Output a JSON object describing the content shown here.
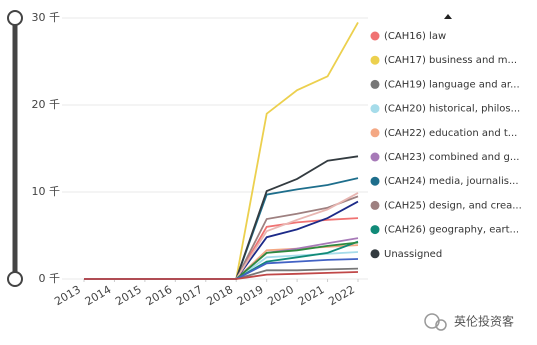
{
  "chart_data": {
    "type": "line",
    "x": [
      2013,
      2014,
      2015,
      2016,
      2017,
      2018,
      2019,
      2020,
      2021,
      2022
    ],
    "xlim": [
      2013,
      2022
    ],
    "xticks": [
      2013,
      2014,
      2015,
      2016,
      2017,
      2018,
      2019,
      2020,
      2021,
      2022
    ],
    "ylim": [
      0,
      30000
    ],
    "yticks": [
      {
        "value": 0,
        "label": "0 千"
      },
      {
        "value": 10000,
        "label": "10 千"
      },
      {
        "value": 20000,
        "label": "20 千"
      },
      {
        "value": 30000,
        "label": "30 千"
      }
    ],
    "grid": true,
    "series": [
      {
        "name": "(CAH16) law",
        "color": "#f07272",
        "values": [
          0,
          0,
          0,
          0,
          0,
          0,
          6000,
          6500,
          6800,
          7000
        ]
      },
      {
        "name": "(CAH17) business and m...",
        "color": "#ecd04e",
        "values": [
          0,
          0,
          0,
          0,
          0,
          0,
          19000,
          21700,
          23300,
          29500
        ]
      },
      {
        "name": "(CAH19) language and ar...",
        "color": "#777777",
        "values": [
          0,
          0,
          0,
          0,
          0,
          0,
          1000,
          1000,
          1100,
          1200
        ]
      },
      {
        "name": "(CAH20) historical, philos...",
        "color": "#a6dcea",
        "values": [
          0,
          0,
          0,
          0,
          0,
          0,
          2500,
          2700,
          2900,
          3100
        ]
      },
      {
        "name": "(CAH22) education and t...",
        "color": "#f4a884",
        "values": [
          0,
          0,
          0,
          0,
          0,
          0,
          3300,
          3500,
          3700,
          3900
        ]
      },
      {
        "name": "(CAH23) combined and g...",
        "color": "#a77ab8",
        "values": [
          0,
          0,
          0,
          0,
          0,
          0,
          3000,
          3500,
          4100,
          4700
        ]
      },
      {
        "name": "(CAH24) media, journalis...",
        "color": "#1e6e8c",
        "values": [
          0,
          0,
          0,
          0,
          0,
          0,
          9700,
          10300,
          10800,
          11600
        ]
      },
      {
        "name": "(CAH25) design, and crea...",
        "color": "#9e8080",
        "values": [
          0,
          0,
          0,
          0,
          0,
          0,
          6900,
          7500,
          8200,
          9500
        ]
      },
      {
        "name": "(CAH26) geography, eart...",
        "color": "#108a78",
        "values": [
          0,
          0,
          0,
          0,
          0,
          0,
          2000,
          2500,
          3000,
          4300
        ]
      },
      {
        "name": "Unassigned",
        "color": "#333b40",
        "values": [
          0,
          0,
          0,
          0,
          0,
          0,
          10100,
          11500,
          13600,
          14100
        ]
      },
      {
        "color": "#1c2a88",
        "values": [
          0,
          0,
          0,
          0,
          0,
          0,
          4800,
          5700,
          7000,
          8900
        ]
      },
      {
        "color": "#e8b6b2",
        "values": [
          0,
          0,
          0,
          0,
          0,
          0,
          5500,
          6800,
          8000,
          9900
        ]
      },
      {
        "color": "#2e8a3e",
        "values": [
          0,
          0,
          0,
          0,
          0,
          0,
          3000,
          3300,
          3800,
          4200
        ]
      },
      {
        "color": "#4262c4",
        "values": [
          0,
          0,
          0,
          0,
          0,
          0,
          1800,
          2000,
          2200,
          2300
        ]
      },
      {
        "color": "#c04848",
        "values": [
          0,
          0,
          0,
          0,
          0,
          0,
          500,
          600,
          700,
          800
        ]
      }
    ]
  },
  "watermark": "英伦投资客"
}
